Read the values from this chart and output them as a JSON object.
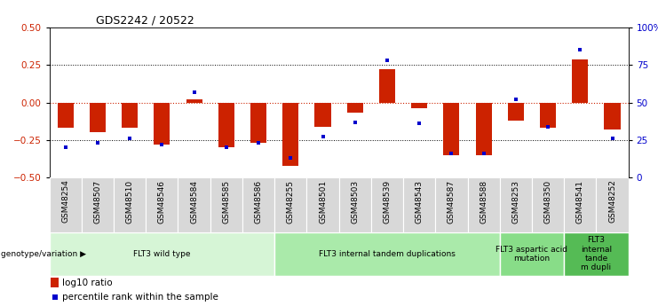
{
  "title": "GDS2242 / 20522",
  "samples": [
    "GSM48254",
    "GSM48507",
    "GSM48510",
    "GSM48546",
    "GSM48584",
    "GSM48585",
    "GSM48586",
    "GSM48255",
    "GSM48501",
    "GSM48503",
    "GSM48539",
    "GSM48543",
    "GSM48587",
    "GSM48588",
    "GSM48253",
    "GSM48350",
    "GSM48541",
    "GSM48252"
  ],
  "log10_ratio": [
    -0.17,
    -0.2,
    -0.17,
    -0.28,
    0.02,
    -0.3,
    -0.27,
    -0.42,
    -0.16,
    -0.07,
    0.22,
    -0.04,
    -0.35,
    -0.35,
    -0.12,
    -0.17,
    0.29,
    -0.18
  ],
  "percentile_rank": [
    20,
    23,
    26,
    22,
    57,
    20,
    23,
    13,
    27,
    37,
    78,
    36,
    16,
    16,
    52,
    34,
    85,
    26
  ],
  "groups": [
    {
      "label": "FLT3 wild type",
      "start": 0,
      "end": 6,
      "color": "#d6f5d6"
    },
    {
      "label": "FLT3 internal tandem duplications",
      "start": 7,
      "end": 13,
      "color": "#aaeaaa"
    },
    {
      "label": "FLT3 aspartic acid\nmutation",
      "start": 14,
      "end": 15,
      "color": "#88dd88"
    },
    {
      "label": "FLT3\ninternal\ntande\nm dupli",
      "start": 16,
      "end": 17,
      "color": "#55bb55"
    }
  ],
  "ylim": [
    -0.5,
    0.5
  ],
  "y2lim": [
    0,
    100
  ],
  "yticks": [
    -0.5,
    -0.25,
    0.0,
    0.25,
    0.5
  ],
  "y2ticks": [
    0,
    25,
    50,
    75,
    100
  ],
  "hlines_dotted": [
    -0.25,
    0.25
  ],
  "hline_red": 0.0,
  "bar_color": "#cc2200",
  "dot_color": "#0000cc",
  "background_color": "#ffffff"
}
